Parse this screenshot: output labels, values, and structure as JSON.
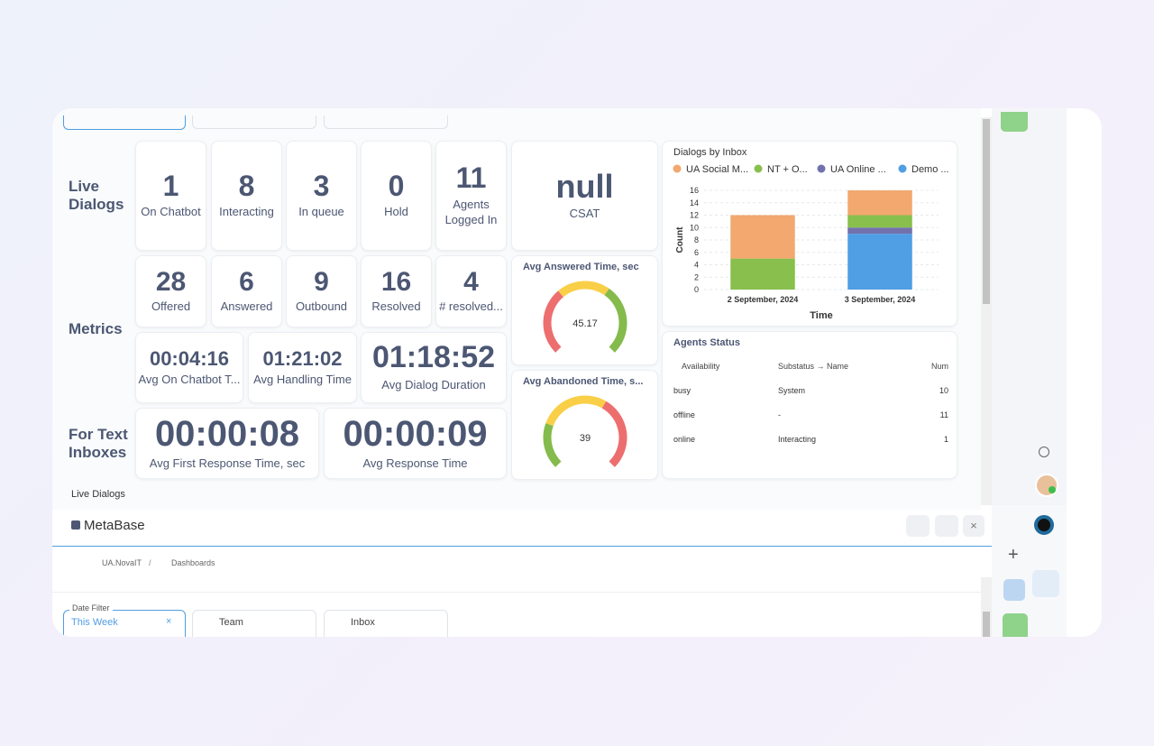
{
  "live_dialogs": {
    "label": "Live Dialogs",
    "tiles": [
      {
        "value": 1,
        "label": "On Chatbot"
      },
      {
        "value": 8,
        "label": "Interacting"
      },
      {
        "value": 3,
        "label": "In queue"
      },
      {
        "value": 0,
        "label": "Hold"
      },
      {
        "value": 11,
        "label": "Agents Logged In"
      }
    ]
  },
  "csat": {
    "value": "null",
    "label": "CSAT"
  },
  "metrics": {
    "label": "Metrics",
    "tiles": [
      {
        "value": 28,
        "label": "Offered"
      },
      {
        "value": 6,
        "label": "Answered"
      },
      {
        "value": 9,
        "label": "Outbound"
      },
      {
        "value": 16,
        "label": "Resolved"
      },
      {
        "value": 4,
        "label": "# resolved..."
      }
    ],
    "durations": [
      {
        "value": "00:04:16",
        "label": "Avg On Chatbot T..."
      },
      {
        "value": "01:21:02",
        "label": "Avg Handling Time"
      },
      {
        "value": "01:18:52",
        "label": "Avg Dialog Duration"
      }
    ]
  },
  "text_inboxes": {
    "label": "For Text Inboxes",
    "tiles": [
      {
        "value": "00:00:08",
        "label": "Avg First Response Time, sec"
      },
      {
        "value": "00:00:09",
        "label": "Avg Response Time"
      }
    ]
  },
  "gauges": [
    {
      "title": "Avg Answered Time, sec",
      "value": 45.17
    },
    {
      "title": "Avg Abandoned Time, s...",
      "value": 39
    }
  ],
  "chart_data": {
    "type": "bar",
    "stacked": true,
    "title": "Dialogs by Inbox",
    "x_label": "Time",
    "y_label": "Count",
    "categories": [
      "2 September, 2024",
      "3 September, 2024"
    ],
    "series": [
      {
        "name": "UA Social M...",
        "color": "#f2a86f",
        "values": [
          7,
          4
        ]
      },
      {
        "name": "NT + O...",
        "color": "#88bf4d",
        "values": [
          5,
          2
        ]
      },
      {
        "name": "UA Online ...",
        "color": "#7172ad",
        "values": [
          0,
          1
        ]
      },
      {
        "name": "Demo ...",
        "color": "#509ee3",
        "values": [
          0,
          9
        ]
      }
    ],
    "ylim": [
      0,
      16
    ],
    "yticks": [
      0,
      2,
      4,
      6,
      8,
      10,
      12,
      14,
      16
    ],
    "grid": true
  },
  "agents_status": {
    "title": "Agents Status",
    "columns": [
      "Availability",
      "Substatus → Name",
      "Num"
    ],
    "rows": [
      [
        "busy",
        "System",
        10
      ],
      [
        "offline",
        "-",
        11
      ],
      [
        "online",
        "Interacting",
        1
      ]
    ]
  },
  "footer_tab": "Live Dialogs",
  "app_title": "MetaBase",
  "breadcrumb": [
    "UA.NovaIT",
    "Dashboards"
  ],
  "filters": {
    "date_label": "Date Filter",
    "date_value": "This Week",
    "team": "Team",
    "inbox": "Inbox"
  }
}
